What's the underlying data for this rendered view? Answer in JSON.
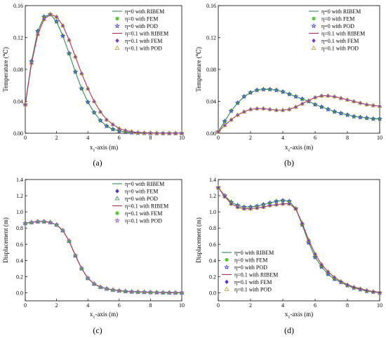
{
  "chart_data": [
    {
      "type": "line",
      "panel_label": "(a)",
      "xlabel": "x1-axis (m)",
      "ylabel": "Temperature (℃)",
      "xlim": [
        0,
        10
      ],
      "ylim": [
        0,
        0.16
      ],
      "xticks": [
        "0",
        "2",
        "4",
        "6",
        "8",
        "10"
      ],
      "yticks": [
        "0.00",
        "0.04",
        "0.08",
        "0.12",
        "0.16"
      ],
      "legend_position": "top-right",
      "grid": false,
      "legend": [
        {
          "label": "η=0 with RIBEM",
          "kind": "line",
          "color": "#2e8b57"
        },
        {
          "label": "η=0 with FEM",
          "kind": "filled-circle",
          "color": "#55cc33"
        },
        {
          "label": "η=0 with POD",
          "kind": "open-star",
          "color": "#3a3ad8"
        },
        {
          "label": "η=0.1 with RIBEM",
          "kind": "line",
          "color": "#b03050"
        },
        {
          "label": "η=0.1 with FEM",
          "kind": "filled-diamond",
          "color": "#7a3ad0"
        },
        {
          "label": "η=0.1 with POD",
          "kind": "open-triangle",
          "color": "#b8a030"
        }
      ],
      "series": [
        {
          "x": [
            0,
            0.4,
            0.8,
            1.2,
            1.6,
            2.0,
            2.4,
            2.8,
            3.2,
            3.6,
            4.0,
            4.4,
            4.8,
            5.2,
            5.6,
            6.0,
            6.4,
            6.8,
            7.2,
            7.6,
            8.0,
            8.4,
            8.8,
            9.2,
            9.6,
            10
          ],
          "y": [
            0.036,
            0.09,
            0.128,
            0.146,
            0.149,
            0.14,
            0.122,
            0.1,
            0.077,
            0.056,
            0.039,
            0.026,
            0.016,
            0.009,
            0.005,
            0.003,
            0.0015,
            0.0008,
            0.0004,
            0.0002,
            0.0001,
            0,
            0,
            0,
            0,
            0
          ]
        },
        {
          "x": [
            0,
            0.4,
            0.8,
            1.2,
            1.6,
            2.0,
            2.4,
            2.8,
            3.2,
            3.6,
            4.0,
            4.4,
            4.8,
            5.2,
            5.6,
            6.0,
            6.4,
            6.8,
            7.2,
            7.6,
            8.0,
            8.4,
            8.8,
            9.2,
            9.6,
            10
          ],
          "y": [
            0.036,
            0.088,
            0.124,
            0.143,
            0.149,
            0.146,
            0.135,
            0.117,
            0.096,
            0.075,
            0.056,
            0.04,
            0.027,
            0.017,
            0.011,
            0.006,
            0.0035,
            0.002,
            0.001,
            0.0005,
            0.0003,
            0.0001,
            0,
            0,
            0,
            0
          ]
        }
      ]
    },
    {
      "type": "line",
      "panel_label": "(b)",
      "xlabel": "x1-axis (m)",
      "ylabel": "Temperature (℃)",
      "xlim": [
        0,
        10
      ],
      "ylim": [
        0,
        0.16
      ],
      "xticks": [
        "0",
        "2",
        "4",
        "6",
        "8",
        "10"
      ],
      "yticks": [
        "0.00",
        "0.04",
        "0.08",
        "0.12",
        "0.16"
      ],
      "legend_position": "top-right",
      "grid": false,
      "legend": [
        {
          "label": "η=0 with RIBEM",
          "kind": "line",
          "color": "#2e8b57"
        },
        {
          "label": "η=0 with FEM",
          "kind": "filled-circle",
          "color": "#55cc33"
        },
        {
          "label": "η=0 with POD",
          "kind": "open-star",
          "color": "#3a3ad8"
        },
        {
          "label": "η=0.1 with RIBEM",
          "kind": "line",
          "color": "#b03050"
        },
        {
          "label": "η=0.1 with FEM",
          "kind": "filled-diamond",
          "color": "#7a3ad0"
        },
        {
          "label": "η=0.1 with POD",
          "kind": "open-triangle",
          "color": "#b8a030"
        }
      ],
      "series": [
        {
          "x": [
            0,
            0.4,
            0.8,
            1.2,
            1.6,
            2.0,
            2.4,
            2.8,
            3.2,
            3.6,
            4.0,
            4.4,
            4.8,
            5.2,
            5.6,
            6.0,
            6.4,
            6.8,
            7.2,
            7.6,
            8.0,
            8.4,
            8.8,
            9.2,
            9.6,
            10
          ],
          "y": [
            0.002,
            0.015,
            0.028,
            0.038,
            0.046,
            0.051,
            0.054,
            0.055,
            0.055,
            0.054,
            0.052,
            0.049,
            0.046,
            0.043,
            0.04,
            0.036,
            0.033,
            0.03,
            0.027,
            0.025,
            0.023,
            0.021,
            0.02,
            0.019,
            0.018,
            0.018
          ]
        },
        {
          "x": [
            0,
            0.4,
            0.8,
            1.2,
            1.6,
            2.0,
            2.4,
            2.8,
            3.2,
            3.6,
            4.0,
            4.4,
            4.8,
            5.2,
            5.6,
            6.0,
            6.4,
            6.8,
            7.2,
            7.6,
            8.0,
            8.4,
            8.8,
            9.2,
            9.6,
            10
          ],
          "y": [
            0.002,
            0.01,
            0.017,
            0.023,
            0.027,
            0.03,
            0.031,
            0.031,
            0.03,
            0.029,
            0.029,
            0.03,
            0.033,
            0.037,
            0.041,
            0.045,
            0.047,
            0.047,
            0.046,
            0.044,
            0.042,
            0.04,
            0.038,
            0.036,
            0.035,
            0.034
          ]
        }
      ]
    },
    {
      "type": "line",
      "panel_label": "(c)",
      "xlabel": "x1-axis (m)",
      "ylabel": "Displacement (m)",
      "xlim": [
        0,
        10
      ],
      "ylim": [
        -0.1,
        1.4
      ],
      "xticks": [
        "0",
        "2",
        "4",
        "6",
        "8",
        "10"
      ],
      "yticks": [
        "0.0",
        "0.2",
        "0.4",
        "0.6",
        "0.8",
        "1.0",
        "1.2",
        "1.4"
      ],
      "legend_position": "top-right",
      "grid": false,
      "legend": [
        {
          "label": "η=0 with RIBEM",
          "kind": "line",
          "color": "#2e8b57"
        },
        {
          "label": "η=0 with FEM",
          "kind": "filled-diamond",
          "color": "#4a30c0"
        },
        {
          "label": "η=0 with POD",
          "kind": "open-triangle",
          "color": "#2e8b57"
        },
        {
          "label": "η=0.1 with RIBEM",
          "kind": "line",
          "color": "#b03050"
        },
        {
          "label": "η=0.1 with FEM",
          "kind": "filled-circle",
          "color": "#55cc33"
        },
        {
          "label": "η=0.1 with POD",
          "kind": "open-star",
          "color": "#8a50d0"
        }
      ],
      "series": [
        {
          "x": [
            0,
            0.4,
            0.8,
            1.2,
            1.6,
            2.0,
            2.4,
            2.8,
            3.2,
            3.6,
            4.0,
            4.4,
            4.8,
            5.2,
            5.6,
            6.0,
            6.4,
            6.8,
            7.2,
            7.6,
            8.0,
            8.4,
            8.8,
            9.2,
            9.6,
            10
          ],
          "y": [
            0.86,
            0.87,
            0.88,
            0.88,
            0.87,
            0.84,
            0.77,
            0.64,
            0.46,
            0.3,
            0.18,
            0.11,
            0.07,
            0.05,
            0.035,
            0.025,
            0.018,
            0.013,
            0.01,
            0.008,
            0.006,
            0.004,
            0.002,
            0.001,
            0,
            0
          ]
        },
        {
          "x": [
            0,
            0.4,
            0.8,
            1.2,
            1.6,
            2.0,
            2.4,
            2.8,
            3.2,
            3.6,
            4.0,
            4.4,
            4.8,
            5.2,
            5.6,
            6.0,
            6.4,
            6.8,
            7.2,
            7.6,
            8.0,
            8.4,
            8.8,
            9.2,
            9.6,
            10
          ],
          "y": [
            0.86,
            0.87,
            0.88,
            0.88,
            0.87,
            0.84,
            0.77,
            0.64,
            0.46,
            0.3,
            0.18,
            0.11,
            0.07,
            0.05,
            0.035,
            0.025,
            0.018,
            0.013,
            0.01,
            0.008,
            0.006,
            0.004,
            0.002,
            0.001,
            0,
            0
          ]
        }
      ]
    },
    {
      "type": "line",
      "panel_label": "(d)",
      "xlabel": "x1-axis (m)",
      "ylabel": "Displacement (m)",
      "xlim": [
        0,
        10
      ],
      "ylim": [
        -0.1,
        1.4
      ],
      "xticks": [
        "0",
        "2",
        "4",
        "6",
        "8",
        "10"
      ],
      "yticks": [
        "0.0",
        "0.2",
        "0.4",
        "0.6",
        "0.8",
        "1.0",
        "1.2",
        "1.4"
      ],
      "legend_position": "bottom-left",
      "grid": false,
      "legend": [
        {
          "label": "η=0 with RIBEM",
          "kind": "line",
          "color": "#2e8b57"
        },
        {
          "label": "η=0 with FEM",
          "kind": "filled-circle",
          "color": "#55cc33"
        },
        {
          "label": "η=0 with POD",
          "kind": "open-star",
          "color": "#3a3ad8"
        },
        {
          "label": "η=0.1 with RIBEM",
          "kind": "line",
          "color": "#b03050"
        },
        {
          "label": "η=0.1 with FEM",
          "kind": "filled-diamond",
          "color": "#5a30d0"
        },
        {
          "label": "η=0.1 with POD",
          "kind": "open-triangle",
          "color": "#b8a030"
        }
      ],
      "series": [
        {
          "x": [
            0,
            0.4,
            0.8,
            1.2,
            1.6,
            2.0,
            2.4,
            2.8,
            3.2,
            3.6,
            4.0,
            4.4,
            4.8,
            5.2,
            5.6,
            6.0,
            6.4,
            6.8,
            7.2,
            7.6,
            8.0,
            8.4,
            8.8,
            9.2,
            9.6,
            10
          ],
          "y": [
            1.3,
            1.2,
            1.12,
            1.08,
            1.06,
            1.06,
            1.07,
            1.09,
            1.11,
            1.13,
            1.14,
            1.13,
            1.04,
            0.84,
            0.62,
            0.44,
            0.32,
            0.23,
            0.17,
            0.13,
            0.09,
            0.06,
            0.04,
            0.02,
            0.01,
            0.0
          ]
        },
        {
          "x": [
            0,
            0.4,
            0.8,
            1.2,
            1.6,
            2.0,
            2.4,
            2.8,
            3.2,
            3.6,
            4.0,
            4.4,
            4.8,
            5.2,
            5.6,
            6.0,
            6.4,
            6.8,
            7.2,
            7.6,
            8.0,
            8.4,
            8.8,
            9.2,
            9.6,
            10
          ],
          "y": [
            1.3,
            1.19,
            1.1,
            1.06,
            1.04,
            1.04,
            1.05,
            1.06,
            1.08,
            1.09,
            1.1,
            1.1,
            1.04,
            0.86,
            0.65,
            0.48,
            0.35,
            0.26,
            0.19,
            0.14,
            0.1,
            0.07,
            0.05,
            0.03,
            0.015,
            0.005
          ]
        }
      ]
    }
  ]
}
